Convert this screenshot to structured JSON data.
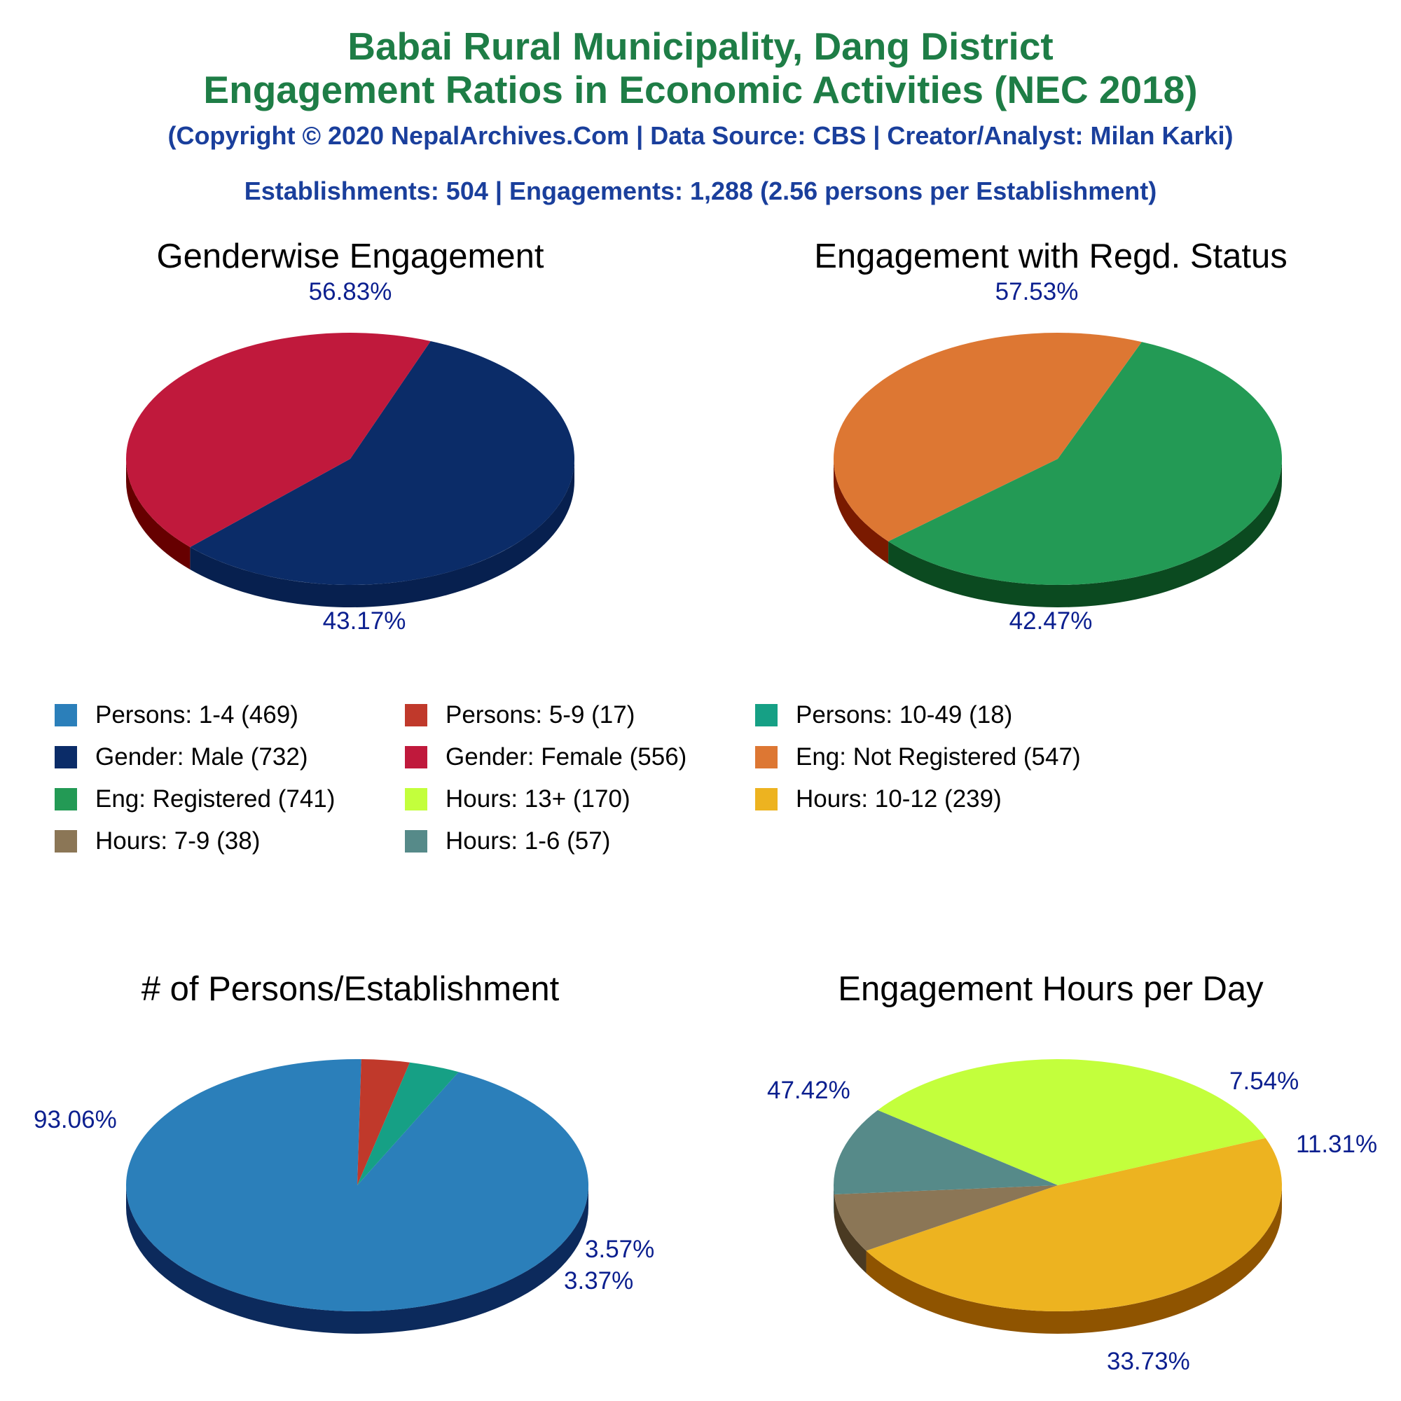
{
  "title": {
    "line1": "Babai Rural Municipality, Dang District",
    "line2": "Engagement Ratios in Economic Activities (NEC 2018)"
  },
  "subtitle": "(Copyright © 2020 NepalArchives.Com | Data Source: CBS | Creator/Analyst: Milan Karki)",
  "summary": "Establishments: 504 | Engagements: 1,288 (2.56 persons per Establishment)",
  "legend": [
    {
      "label": "Persons: 1-4 (469)",
      "color": "#2b7fba"
    },
    {
      "label": "Persons: 5-9 (17)",
      "color": "#c0392b"
    },
    {
      "label": "Persons: 10-49 (18)",
      "color": "#16a085"
    },
    {
      "label": "Gender: Male (732)",
      "color": "#0b2c68"
    },
    {
      "label": "Gender: Female (556)",
      "color": "#c0193c"
    },
    {
      "label": "Eng: Not Registered (547)",
      "color": "#dd7733"
    },
    {
      "label": "Eng: Registered (741)",
      "color": "#239a55"
    },
    {
      "label": "Hours: 13+ (170)",
      "color": "#c3ff3c"
    },
    {
      "label": "Hours: 10-12 (239)",
      "color": "#edb320"
    },
    {
      "label": "Hours: 7-9 (38)",
      "color": "#8b7656"
    },
    {
      "label": "Hours: 1-6 (57)",
      "color": "#568a89"
    }
  ],
  "chart_data": [
    {
      "type": "pie",
      "title": "Genderwise Engagement",
      "slices": [
        {
          "name": "Gender: Male",
          "value": 732,
          "percent_label": "56.83%",
          "color": "#0b2c68",
          "side": "#07204f"
        },
        {
          "name": "Gender: Female",
          "value": 556,
          "percent_label": "43.17%",
          "color": "#c0193c",
          "side": "#660000"
        }
      ]
    },
    {
      "type": "pie",
      "title": "Engagement with Regd. Status",
      "slices": [
        {
          "name": "Eng: Registered",
          "value": 741,
          "percent_label": "57.53%",
          "color": "#239a55",
          "side": "#0b4a20"
        },
        {
          "name": "Eng: Not Registered",
          "value": 547,
          "percent_label": "42.47%",
          "color": "#dd7733",
          "side": "#7a1a00"
        }
      ]
    },
    {
      "type": "pie",
      "title": "# of Persons/Establishment",
      "slices": [
        {
          "name": "Persons: 1-4",
          "value": 469,
          "percent_label": "93.06%",
          "color": "#2b7fba",
          "side": "#0c2a5c"
        },
        {
          "name": "Persons: 5-9",
          "value": 17,
          "percent_label": "3.37%",
          "color": "#c0392b",
          "side": "#6a0000"
        },
        {
          "name": "Persons: 10-49",
          "value": 18,
          "percent_label": "3.57%",
          "color": "#16a085",
          "side": "#0a4a3a"
        }
      ]
    },
    {
      "type": "pie",
      "title": "Engagement Hours per Day",
      "slices": [
        {
          "name": "Hours: 10-12",
          "value": 239,
          "percent_label": "47.42%",
          "color": "#edb320",
          "side": "#8f5400"
        },
        {
          "name": "Hours: 7-9",
          "value": 38,
          "percent_label": "7.54%",
          "color": "#8b7656",
          "side": "#4a3a22"
        },
        {
          "name": "Hours: 1-6",
          "value": 57,
          "percent_label": "11.31%",
          "color": "#568a89",
          "side": "#2c4a49"
        },
        {
          "name": "Hours: 13+",
          "value": 170,
          "percent_label": "33.73%",
          "color": "#c3ff3c",
          "side": "#66a600"
        }
      ]
    }
  ]
}
